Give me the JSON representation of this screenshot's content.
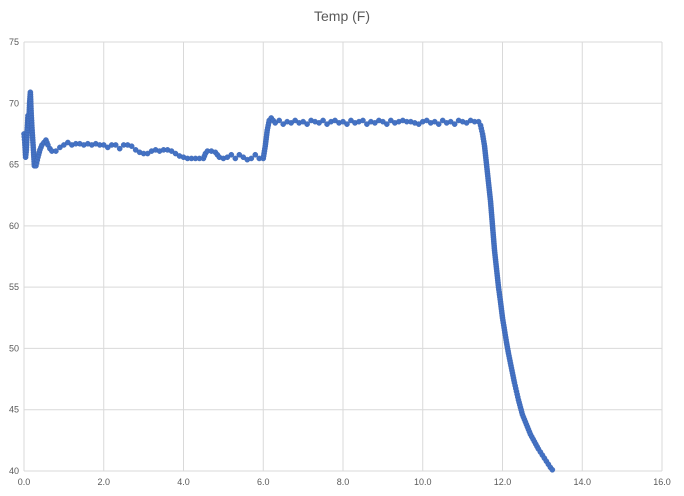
{
  "chart_data": {
    "type": "scatter",
    "title": "Temp (F)",
    "xlabel": "",
    "ylabel": "",
    "xlim": [
      0,
      16
    ],
    "ylim": [
      40,
      75
    ],
    "x_ticks": [
      "0.0",
      "2.0",
      "4.0",
      "6.0",
      "8.0",
      "10.0",
      "12.0",
      "14.0",
      "16.0"
    ],
    "y_ticks": [
      "40",
      "45",
      "50",
      "55",
      "60",
      "65",
      "70",
      "75"
    ],
    "grid": true,
    "legend": "none",
    "marker_color": "#4472C4",
    "series": [
      {
        "points": [
          [
            0.0,
            67.5
          ],
          [
            0.02,
            66.8
          ],
          [
            0.04,
            65.6
          ],
          [
            0.06,
            66.2
          ],
          [
            0.08,
            67.8
          ],
          [
            0.1,
            69.0
          ],
          [
            0.12,
            68.2
          ],
          [
            0.14,
            70.0
          ],
          [
            0.16,
            70.9
          ],
          [
            0.18,
            69.2
          ],
          [
            0.2,
            68.0
          ],
          [
            0.22,
            67.0
          ],
          [
            0.24,
            66.0
          ],
          [
            0.26,
            64.9
          ],
          [
            0.3,
            64.9
          ],
          [
            0.35,
            65.6
          ],
          [
            0.4,
            66.2
          ],
          [
            0.45,
            66.6
          ],
          [
            0.5,
            66.8
          ],
          [
            0.55,
            67.0
          ],
          [
            0.6,
            66.6
          ],
          [
            0.65,
            66.3
          ],
          [
            0.7,
            66.1
          ],
          [
            0.8,
            66.1
          ],
          [
            0.9,
            66.4
          ],
          [
            1.0,
            66.6
          ],
          [
            1.1,
            66.8
          ],
          [
            1.2,
            66.6
          ],
          [
            1.3,
            66.7
          ],
          [
            1.4,
            66.7
          ],
          [
            1.5,
            66.6
          ],
          [
            1.6,
            66.7
          ],
          [
            1.7,
            66.6
          ],
          [
            1.8,
            66.7
          ],
          [
            1.9,
            66.6
          ],
          [
            2.0,
            66.6
          ],
          [
            2.1,
            66.4
          ],
          [
            2.2,
            66.6
          ],
          [
            2.3,
            66.6
          ],
          [
            2.4,
            66.3
          ],
          [
            2.5,
            66.6
          ],
          [
            2.6,
            66.6
          ],
          [
            2.7,
            66.5
          ],
          [
            2.8,
            66.2
          ],
          [
            2.9,
            66.0
          ],
          [
            3.0,
            65.9
          ],
          [
            3.1,
            65.9
          ],
          [
            3.2,
            66.1
          ],
          [
            3.3,
            66.2
          ],
          [
            3.4,
            66.1
          ],
          [
            3.5,
            66.2
          ],
          [
            3.6,
            66.2
          ],
          [
            3.7,
            66.1
          ],
          [
            3.8,
            65.9
          ],
          [
            3.9,
            65.7
          ],
          [
            4.0,
            65.6
          ],
          [
            4.1,
            65.5
          ],
          [
            4.2,
            65.5
          ],
          [
            4.3,
            65.5
          ],
          [
            4.4,
            65.5
          ],
          [
            4.5,
            65.5
          ],
          [
            4.55,
            65.9
          ],
          [
            4.6,
            66.1
          ],
          [
            4.7,
            66.1
          ],
          [
            4.8,
            66.0
          ],
          [
            4.9,
            65.6
          ],
          [
            5.0,
            65.5
          ],
          [
            5.1,
            65.6
          ],
          [
            5.2,
            65.8
          ],
          [
            5.3,
            65.5
          ],
          [
            5.4,
            65.8
          ],
          [
            5.5,
            65.6
          ],
          [
            5.6,
            65.4
          ],
          [
            5.7,
            65.5
          ],
          [
            5.8,
            65.8
          ],
          [
            5.9,
            65.5
          ],
          [
            6.0,
            65.5
          ],
          [
            6.05,
            66.5
          ],
          [
            6.1,
            67.8
          ],
          [
            6.15,
            68.6
          ],
          [
            6.2,
            68.8
          ],
          [
            6.3,
            68.4
          ],
          [
            6.4,
            68.6
          ],
          [
            6.5,
            68.3
          ],
          [
            6.6,
            68.5
          ],
          [
            6.7,
            68.4
          ],
          [
            6.8,
            68.6
          ],
          [
            6.9,
            68.4
          ],
          [
            7.0,
            68.5
          ],
          [
            7.1,
            68.3
          ],
          [
            7.2,
            68.6
          ],
          [
            7.3,
            68.5
          ],
          [
            7.4,
            68.4
          ],
          [
            7.5,
            68.6
          ],
          [
            7.6,
            68.3
          ],
          [
            7.7,
            68.5
          ],
          [
            7.8,
            68.6
          ],
          [
            7.9,
            68.4
          ],
          [
            8.0,
            68.5
          ],
          [
            8.1,
            68.3
          ],
          [
            8.2,
            68.6
          ],
          [
            8.3,
            68.4
          ],
          [
            8.4,
            68.5
          ],
          [
            8.5,
            68.6
          ],
          [
            8.6,
            68.3
          ],
          [
            8.7,
            68.5
          ],
          [
            8.8,
            68.4
          ],
          [
            8.9,
            68.6
          ],
          [
            9.0,
            68.5
          ],
          [
            9.1,
            68.3
          ],
          [
            9.2,
            68.6
          ],
          [
            9.3,
            68.4
          ],
          [
            9.4,
            68.5
          ],
          [
            9.5,
            68.6
          ],
          [
            9.6,
            68.5
          ],
          [
            9.7,
            68.5
          ],
          [
            9.8,
            68.4
          ],
          [
            9.9,
            68.3
          ],
          [
            10.0,
            68.5
          ],
          [
            10.1,
            68.6
          ],
          [
            10.2,
            68.4
          ],
          [
            10.3,
            68.5
          ],
          [
            10.4,
            68.3
          ],
          [
            10.5,
            68.6
          ],
          [
            10.6,
            68.4
          ],
          [
            10.7,
            68.5
          ],
          [
            10.8,
            68.3
          ],
          [
            10.9,
            68.6
          ],
          [
            11.0,
            68.5
          ],
          [
            11.1,
            68.4
          ],
          [
            11.2,
            68.6
          ],
          [
            11.3,
            68.5
          ],
          [
            11.4,
            68.5
          ],
          [
            11.45,
            68.2
          ],
          [
            11.5,
            67.5
          ],
          [
            11.55,
            66.5
          ],
          [
            11.6,
            65.0
          ],
          [
            11.65,
            63.5
          ],
          [
            11.7,
            62.0
          ],
          [
            11.75,
            60.0
          ],
          [
            11.8,
            58.0
          ],
          [
            11.85,
            56.5
          ],
          [
            11.9,
            55.0
          ],
          [
            11.95,
            53.8
          ],
          [
            12.0,
            52.5
          ],
          [
            12.05,
            51.5
          ],
          [
            12.1,
            50.5
          ],
          [
            12.15,
            49.6
          ],
          [
            12.2,
            48.8
          ],
          [
            12.25,
            48.0
          ],
          [
            12.3,
            47.2
          ],
          [
            12.35,
            46.5
          ],
          [
            12.4,
            45.8
          ],
          [
            12.45,
            45.2
          ],
          [
            12.5,
            44.6
          ],
          [
            12.6,
            43.8
          ],
          [
            12.7,
            43.0
          ],
          [
            12.8,
            42.4
          ],
          [
            12.9,
            41.8
          ],
          [
            13.0,
            41.3
          ],
          [
            13.1,
            40.8
          ],
          [
            13.2,
            40.3
          ],
          [
            13.25,
            40.1
          ]
        ]
      }
    ]
  }
}
